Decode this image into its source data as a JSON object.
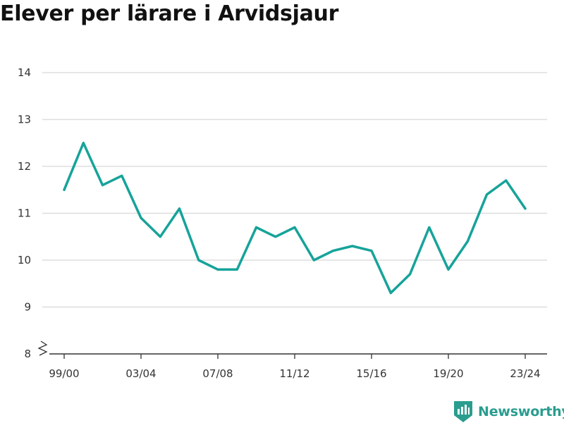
{
  "colors": {
    "line": "#16a39a",
    "grid": "#dddddd",
    "axis": "#333333",
    "text": "#333333",
    "brand": "#2a9d8f"
  },
  "brand": {
    "name": "Newsworthy",
    "logo_icon": "newsworthy-logo-icon"
  },
  "chart_data": {
    "type": "line",
    "title": "Elever per lärare i Arvidsjaur",
    "xlabel": "",
    "ylabel": "",
    "ylim": [
      8,
      14
    ],
    "y_axis_break": true,
    "grid": true,
    "yticks": [
      8,
      9,
      10,
      11,
      12,
      13,
      14
    ],
    "x": [
      "99/00",
      "00/01",
      "01/02",
      "02/03",
      "03/04",
      "04/05",
      "05/06",
      "06/07",
      "07/08",
      "08/09",
      "09/10",
      "10/11",
      "11/12",
      "12/13",
      "13/14",
      "14/15",
      "15/16",
      "16/17",
      "17/18",
      "18/19",
      "19/20",
      "20/21",
      "21/22",
      "22/23",
      "23/24"
    ],
    "xtick_labels": [
      "99/00",
      "03/04",
      "07/08",
      "11/12",
      "15/16",
      "19/20",
      "23/24"
    ],
    "series": [
      {
        "values": [
          11.5,
          12.5,
          11.6,
          11.8,
          10.9,
          10.5,
          11.1,
          10.0,
          9.8,
          9.8,
          10.7,
          10.5,
          10.7,
          10.0,
          10.2,
          10.3,
          10.2,
          9.3,
          9.7,
          10.7,
          9.8,
          10.4,
          11.4,
          11.7,
          11.1
        ]
      }
    ]
  }
}
